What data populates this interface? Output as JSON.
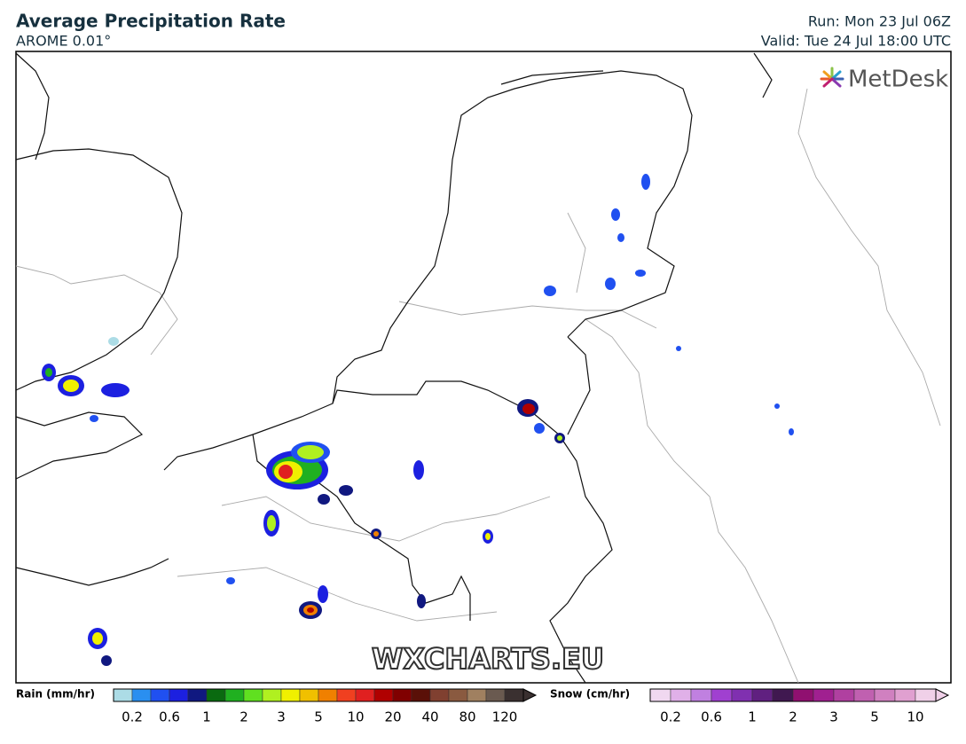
{
  "header": {
    "title": "Average Precipitation Rate",
    "subtitle": "AROME 0.01°",
    "run": "Run: Mon 23 Jul 06Z",
    "valid": "Valid: Tue 24 Jul 18:00 UTC"
  },
  "map": {
    "logo": "MetDesk",
    "watermark": "WXCHARTS.EU"
  },
  "legend": {
    "rain": {
      "label": "Rain (mm/hr)",
      "ticks": [
        0.2,
        0.6,
        1,
        2,
        3,
        5,
        10,
        20,
        40,
        80,
        120
      ],
      "colors": [
        "#acdce6",
        "#2a8ff0",
        "#2050f0",
        "#1c20e0",
        "#101880",
        "#0a6a10",
        "#20b020",
        "#60e020",
        "#b0f020",
        "#f0f000",
        "#f0c000",
        "#f08000",
        "#f04020",
        "#e02020",
        "#b00000",
        "#800000",
        "#5a1008",
        "#804030",
        "#8a5a40",
        "#a08060",
        "#6a5a50",
        "#3a3030"
      ]
    },
    "snow": {
      "label": "Snow (cm/hr)",
      "ticks": [
        0.2,
        0.6,
        1,
        2,
        3,
        5,
        10
      ],
      "colors": [
        "#f0d8f0",
        "#e0b0e8",
        "#c080e0",
        "#a040d0",
        "#8030b0",
        "#602080",
        "#401850",
        "#901070",
        "#a02090",
        "#b040a0",
        "#c060b0",
        "#d080c0",
        "#e0a0d0",
        "#f0d0e8"
      ]
    }
  }
}
